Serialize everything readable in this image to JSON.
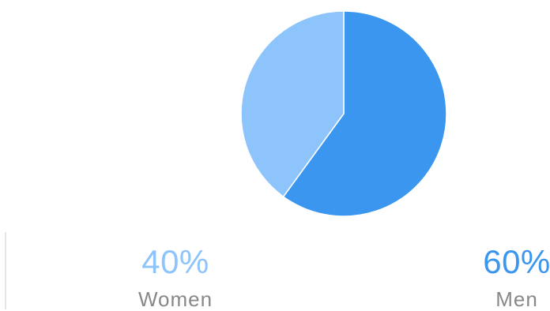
{
  "chart_data": {
    "type": "pie",
    "slices": [
      {
        "label": "Women",
        "value": 40,
        "display": "40%",
        "color": "#8dc4fb"
      },
      {
        "label": "Men",
        "value": 60,
        "display": "60%",
        "color": "#3a96ee"
      }
    ]
  },
  "colors": {
    "women": "#8dc4fb",
    "men": "#3a96ee",
    "label_text": "#888888",
    "divider": "#e6e6e6"
  }
}
